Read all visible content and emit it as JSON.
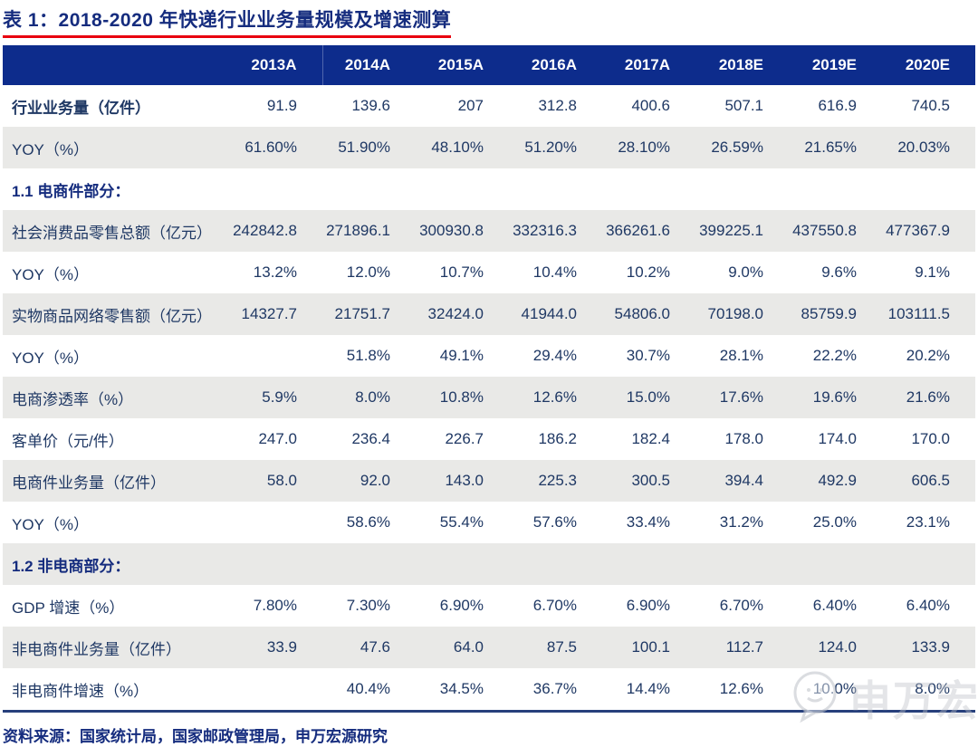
{
  "title": "表 1：2018-2020 年快递行业业务量规模及增速测算",
  "colors": {
    "header_bg": "#0d2c8c",
    "text_navy": "#1f3864",
    "title_navy": "#152c7e",
    "title_underline_red": "#e8000e",
    "row_shade_gray": "#e9e9e7",
    "bottom_rule_navy": "#27407c",
    "watermark_gray": "#bec1c8"
  },
  "table": {
    "columns": [
      "2013A",
      "2014A",
      "2015A",
      "2016A",
      "2017A",
      "2018E",
      "2019E",
      "2020E"
    ],
    "rows": [
      {
        "type": "data",
        "bold": true,
        "label": "行业业务量（亿件）",
        "values": [
          "91.9",
          "139.6",
          "207",
          "312.8",
          "400.6",
          "507.1",
          "616.9",
          "740.5"
        ]
      },
      {
        "type": "data",
        "bold": false,
        "label": "YOY（%）",
        "values": [
          "61.60%",
          "51.90%",
          "48.10%",
          "51.20%",
          "28.10%",
          "26.59%",
          "21.65%",
          "20.03%"
        ]
      },
      {
        "type": "section",
        "label": "1.1 电商件部分："
      },
      {
        "type": "data",
        "bold": false,
        "label": "社会消费品零售总额（亿元）",
        "values": [
          "242842.8",
          "271896.1",
          "300930.8",
          "332316.3",
          "366261.6",
          "399225.1",
          "437550.8",
          "477367.9"
        ]
      },
      {
        "type": "data",
        "bold": false,
        "label": "YOY（%）",
        "values": [
          "13.2%",
          "12.0%",
          "10.7%",
          "10.4%",
          "10.2%",
          "9.0%",
          "9.6%",
          "9.1%"
        ]
      },
      {
        "type": "data",
        "bold": false,
        "label": "实物商品网络零售额（亿元）",
        "values": [
          "14327.7",
          "21751.7",
          "32424.0",
          "41944.0",
          "54806.0",
          "70198.0",
          "85759.9",
          "103111.5"
        ]
      },
      {
        "type": "data",
        "bold": false,
        "label": "YOY（%）",
        "values": [
          "",
          "51.8%",
          "49.1%",
          "29.4%",
          "30.7%",
          "28.1%",
          "22.2%",
          "20.2%"
        ]
      },
      {
        "type": "data",
        "bold": false,
        "label": "电商渗透率（%）",
        "values": [
          "5.9%",
          "8.0%",
          "10.8%",
          "12.6%",
          "15.0%",
          "17.6%",
          "19.6%",
          "21.6%"
        ]
      },
      {
        "type": "data",
        "bold": false,
        "label": "客单价（元/件）",
        "values": [
          "247.0",
          "236.4",
          "226.7",
          "186.2",
          "182.4",
          "178.0",
          "174.0",
          "170.0"
        ]
      },
      {
        "type": "data",
        "bold": false,
        "label": "电商件业务量（亿件）",
        "values": [
          "58.0",
          "92.0",
          "143.0",
          "225.3",
          "300.5",
          "394.4",
          "492.9",
          "606.5"
        ]
      },
      {
        "type": "data",
        "bold": false,
        "label": "YOY（%）",
        "values": [
          "",
          "58.6%",
          "55.4%",
          "57.6%",
          "33.4%",
          "31.2%",
          "25.0%",
          "23.1%"
        ]
      },
      {
        "type": "section",
        "label": "1.2 非电商部分："
      },
      {
        "type": "data",
        "bold": false,
        "label": "GDP 增速（%）",
        "values": [
          "7.80%",
          "7.30%",
          "6.90%",
          "6.70%",
          "6.90%",
          "6.70%",
          "6.40%",
          "6.40%"
        ]
      },
      {
        "type": "data",
        "bold": false,
        "label": "非电商件业务量（亿件）",
        "values": [
          "33.9",
          "47.6",
          "64.0",
          "87.5",
          "100.1",
          "112.7",
          "124.0",
          "133.9"
        ]
      },
      {
        "type": "data",
        "bold": false,
        "label": "非电商件增速（%）",
        "values": [
          "",
          "40.4%",
          "34.5%",
          "36.7%",
          "14.4%",
          "12.6%",
          "10.0%",
          "8.0%"
        ]
      }
    ]
  },
  "footer": {
    "source_label": "资料来源：国家统计局，国家邮政管理局，申万宏源研究"
  },
  "watermark": {
    "text": "申万宏源"
  }
}
